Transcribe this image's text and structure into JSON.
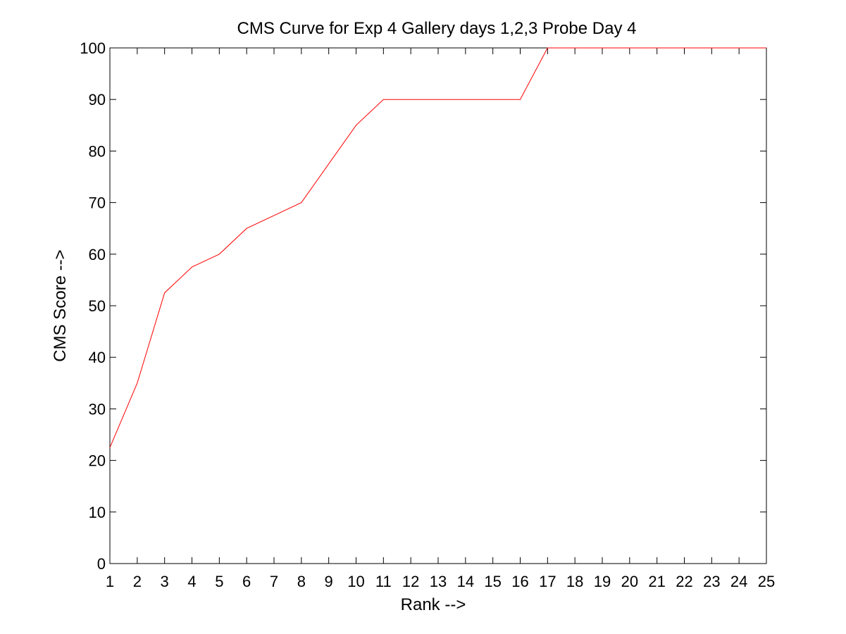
{
  "chart_data": {
    "type": "line",
    "title": "CMS Curve for Exp 4 Gallery days 1,2,3 Probe Day 4",
    "xlabel": "Rank -->",
    "ylabel": "CMS Score -->",
    "xlim": [
      1,
      25
    ],
    "ylim": [
      0,
      100
    ],
    "xticks": [
      1,
      2,
      3,
      4,
      5,
      6,
      7,
      8,
      9,
      10,
      11,
      12,
      13,
      14,
      15,
      16,
      17,
      18,
      19,
      20,
      21,
      22,
      23,
      24,
      25
    ],
    "yticks": [
      0,
      10,
      20,
      30,
      40,
      50,
      60,
      70,
      80,
      90,
      100
    ],
    "grid": false,
    "series": [
      {
        "color": "#ff0000",
        "x": [
          1,
          2,
          3,
          4,
          5,
          6,
          7,
          8,
          9,
          10,
          11,
          12,
          13,
          14,
          15,
          16,
          17,
          18,
          19,
          20,
          21,
          22,
          23,
          24,
          25
        ],
        "values": [
          22.5,
          35,
          52.5,
          57.5,
          60,
          65,
          67.5,
          70,
          77.5,
          85,
          90,
          90,
          90,
          90,
          90,
          90,
          100,
          100,
          100,
          100,
          100,
          100,
          100,
          100,
          100
        ]
      }
    ]
  }
}
